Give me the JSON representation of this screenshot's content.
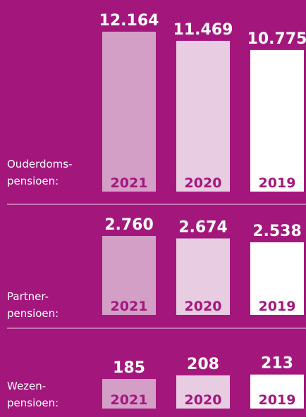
{
  "chart_data": [
    {
      "type": "bar",
      "title": [
        "Ouderdoms-",
        "pensioen:"
      ],
      "categories": [
        "2021",
        "2020",
        "2019"
      ],
      "values": [
        12164,
        11469,
        10775
      ],
      "value_labels": [
        "12.164",
        "11.469",
        "10.775"
      ],
      "colors": [
        "#d49fc6",
        "#e8cce1",
        "#ffffff"
      ],
      "ylim": [
        0,
        12860
      ]
    },
    {
      "type": "bar",
      "title": [
        "Partner-",
        "pensioen:"
      ],
      "categories": [
        "2021",
        "2020",
        "2019"
      ],
      "values": [
        2760,
        2674,
        2538
      ],
      "value_labels": [
        "2.760",
        "2.674",
        "2.538"
      ],
      "colors": [
        "#d49fc6",
        "#e8cce1",
        "#ffffff"
      ],
      "ylim": [
        0,
        2957
      ]
    },
    {
      "type": "bar",
      "title": [
        "Wezen-",
        "pensioen:"
      ],
      "categories": [
        "2021",
        "2020",
        "2019"
      ],
      "values": [
        185,
        208,
        213
      ],
      "colors": [
        "#d49fc6",
        "#e8cce1",
        "#ffffff"
      ],
      "ylim": [
        0,
        225
      ]
    }
  ]
}
